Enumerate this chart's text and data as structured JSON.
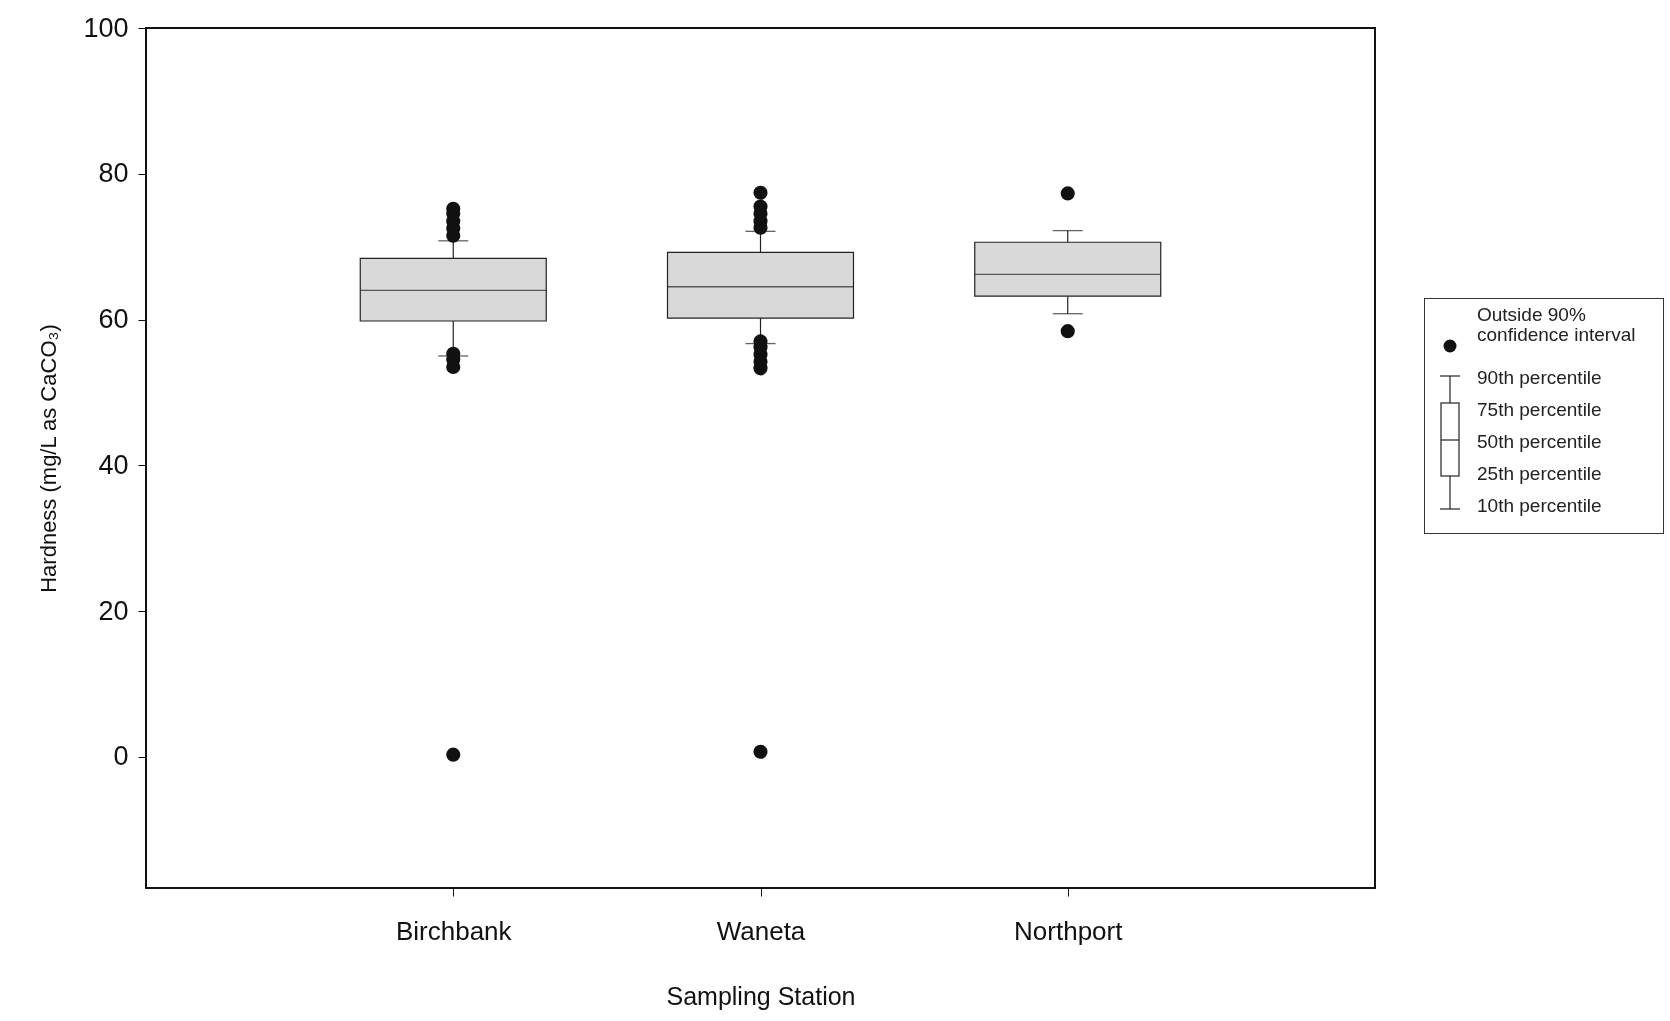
{
  "chart_data": {
    "type": "box",
    "xlabel": "Sampling Station",
    "ylabel": "Hardness (mg/L as CaCO₃)",
    "categories": [
      "Birchbank",
      "Waneta",
      "Northport"
    ],
    "series": [
      {
        "color": "#d9d9d9",
        "boxes": [
          {
            "low": 55.0,
            "q1": 59.8,
            "median": 64.0,
            "q3": 68.4,
            "high": 70.8,
            "outliers": [
              0.3,
              53.5,
              54.5,
              55.3,
              71.5,
              72.5,
              73.5,
              74.5,
              75.2
            ]
          },
          {
            "low": 56.7,
            "q1": 60.2,
            "median": 64.5,
            "q3": 69.2,
            "high": 72.1,
            "outliers": [
              0.7,
              53.3,
              54.2,
              55.2,
              56.2,
              57.0,
              72.6,
              73.5,
              74.5,
              75.5,
              77.4
            ]
          },
          {
            "low": 60.8,
            "q1": 63.2,
            "median": 66.2,
            "q3": 70.6,
            "high": 72.2,
            "outliers": [
              58.4,
              77.3
            ]
          }
        ]
      }
    ],
    "ylim": [
      -18,
      100
    ],
    "yticks": [
      0,
      20,
      40,
      60,
      80,
      100
    ],
    "annotations": [
      "Outside 90%\nconfidence interval",
      "90th percentile",
      "75th percentile",
      "50th percentile",
      "25th percentile",
      "10th percentile"
    ]
  }
}
